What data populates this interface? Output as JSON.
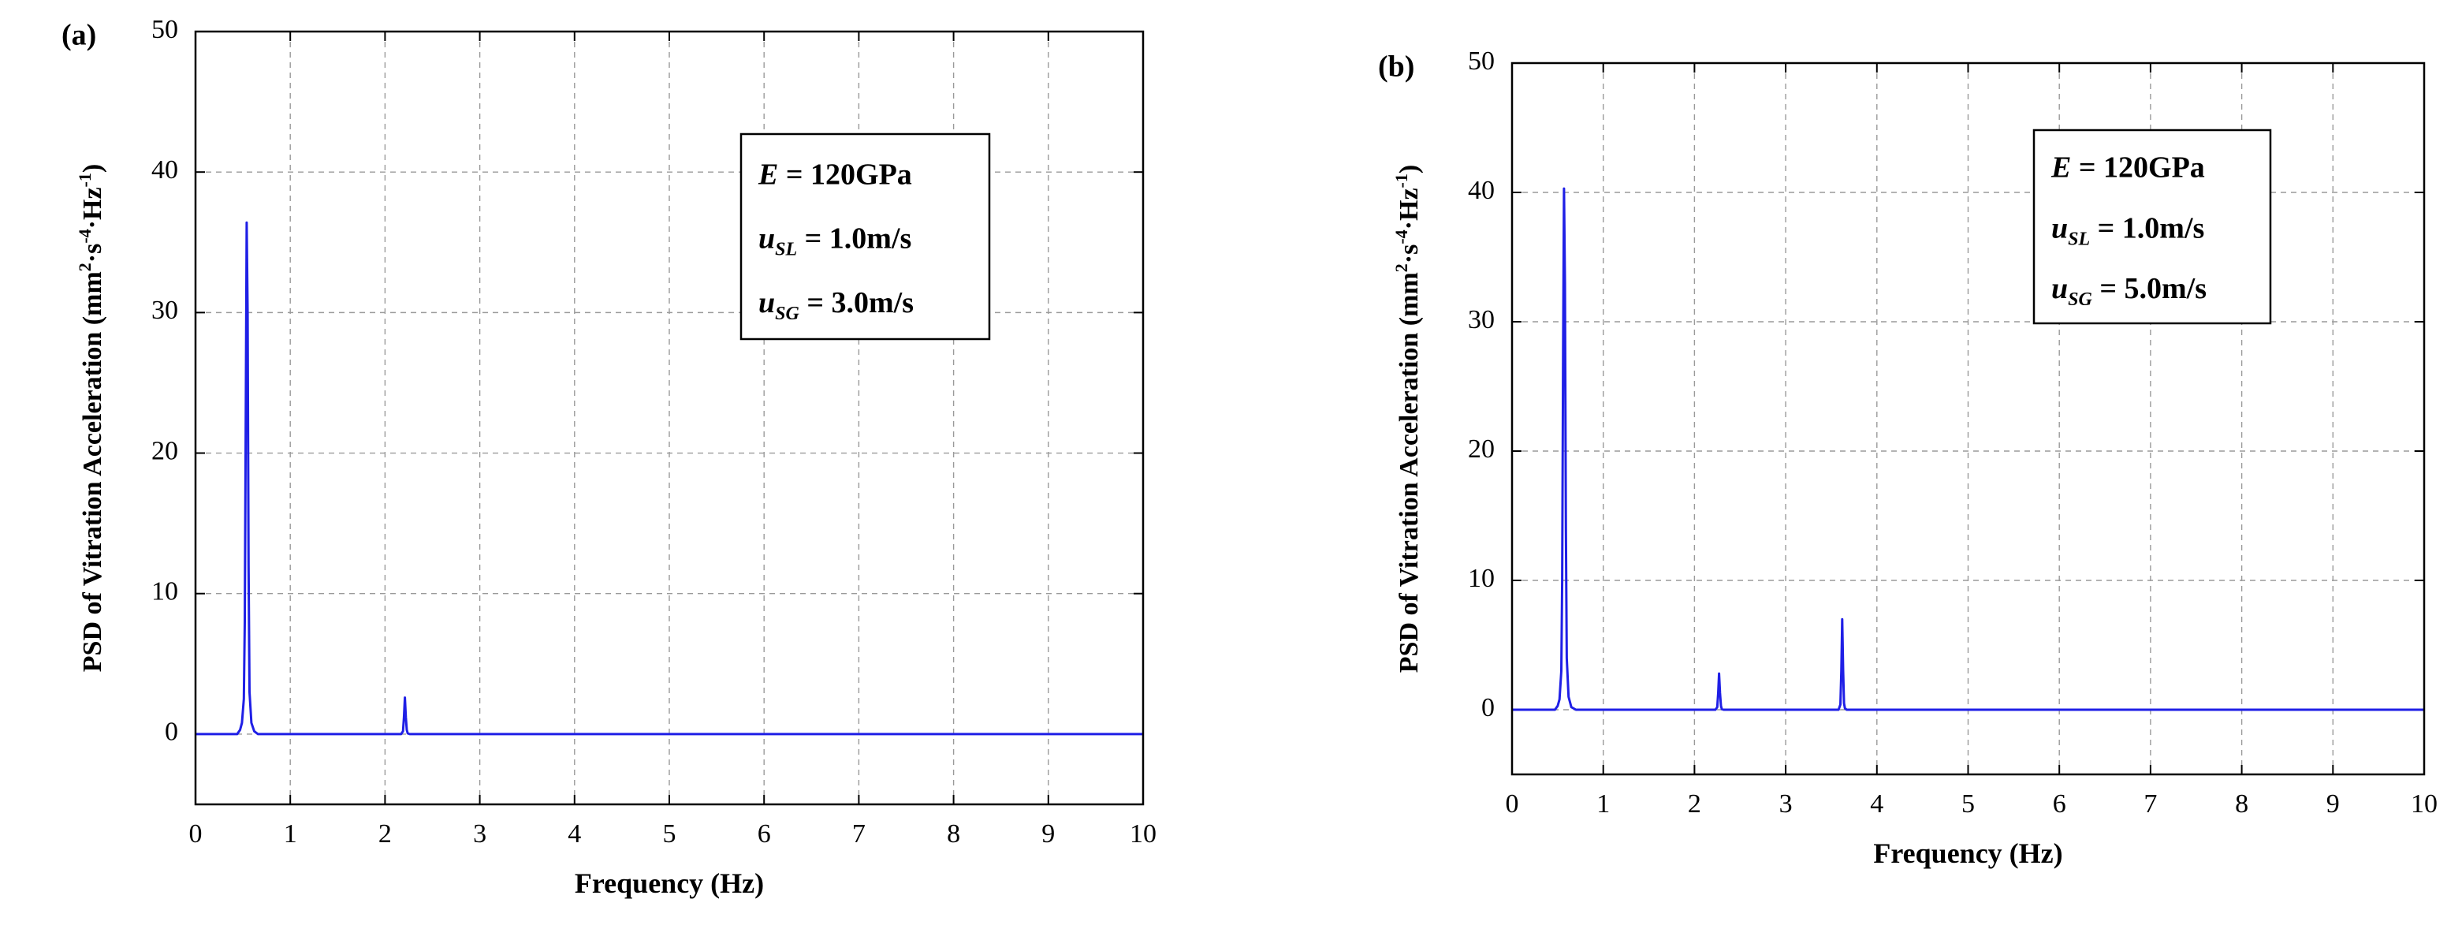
{
  "chart_data": [
    {
      "panel_label": "(a)",
      "type": "line",
      "xlabel": "Frequency (Hz)",
      "ylabel_parts": [
        "PSD of Vitration Acceleration (mm",
        "2",
        "·s",
        "-4",
        "·Hz",
        "-1",
        ")"
      ],
      "xlim": [
        0,
        10
      ],
      "ylim": [
        -5,
        50
      ],
      "xticks": [
        0,
        1,
        2,
        3,
        4,
        5,
        6,
        7,
        8,
        9,
        10
      ],
      "yticks": [
        0,
        10,
        20,
        30,
        40,
        50
      ],
      "grid": true,
      "line_color": "#1f1fe6",
      "legend_position": "top-right",
      "annotation": [
        {
          "var": "E",
          "sub": "",
          "value": " = 120GPa"
        },
        {
          "var": "u",
          "sub": "SL",
          "value": " = 1.0m/s"
        },
        {
          "var": "u",
          "sub": "SG",
          "value": " = 3.0m/s"
        }
      ],
      "series": [
        {
          "name": "PSD",
          "x": [
            0,
            0.44,
            0.47,
            0.49,
            0.51,
            0.52,
            0.53,
            0.54,
            0.55,
            0.56,
            0.57,
            0.59,
            0.62,
            0.66,
            2.17,
            2.19,
            2.2,
            2.21,
            2.22,
            2.23,
            2.24,
            2.26,
            10
          ],
          "y": [
            0,
            0,
            0.3,
            0.8,
            2.5,
            8,
            22,
            36.4,
            30,
            12,
            3,
            0.8,
            0.2,
            0,
            0,
            0.2,
            1.2,
            2.6,
            1.2,
            0.3,
            0.05,
            0,
            0
          ]
        }
      ]
    },
    {
      "panel_label": "(b)",
      "type": "line",
      "xlabel": "Frequency (Hz)",
      "ylabel_parts": [
        "PSD of Vitration Acceleration (mm",
        "2",
        "·s",
        "-4",
        "·Hz",
        "-1",
        ")"
      ],
      "xlim": [
        0,
        10
      ],
      "ylim": [
        -5,
        50
      ],
      "xticks": [
        0,
        1,
        2,
        3,
        4,
        5,
        6,
        7,
        8,
        9,
        10
      ],
      "yticks": [
        0,
        10,
        20,
        30,
        40,
        50
      ],
      "grid": true,
      "line_color": "#1f1fe6",
      "legend_position": "top-right",
      "annotation": [
        {
          "var": "E",
          "sub": "",
          "value": " = 120GPa"
        },
        {
          "var": "u",
          "sub": "SL",
          "value": " = 1.0m/s"
        },
        {
          "var": "u",
          "sub": "SG",
          "value": " = 5.0m/s"
        }
      ],
      "series": [
        {
          "name": "PSD",
          "x": [
            0,
            0.47,
            0.5,
            0.52,
            0.54,
            0.55,
            0.56,
            0.57,
            0.58,
            0.59,
            0.6,
            0.62,
            0.65,
            0.7,
            2.23,
            2.25,
            2.26,
            2.27,
            2.28,
            2.29,
            2.3,
            2.32,
            3.58,
            3.6,
            3.61,
            3.62,
            3.63,
            3.64,
            3.65,
            3.67,
            10
          ],
          "y": [
            0,
            0,
            0.3,
            0.8,
            3,
            10,
            28,
            40.3,
            33,
            14,
            4,
            1,
            0.2,
            0,
            0,
            0.2,
            1.3,
            2.8,
            1.3,
            0.3,
            0.05,
            0,
            0,
            0.4,
            3,
            7,
            3,
            0.5,
            0.1,
            0,
            0
          ]
        }
      ]
    }
  ]
}
